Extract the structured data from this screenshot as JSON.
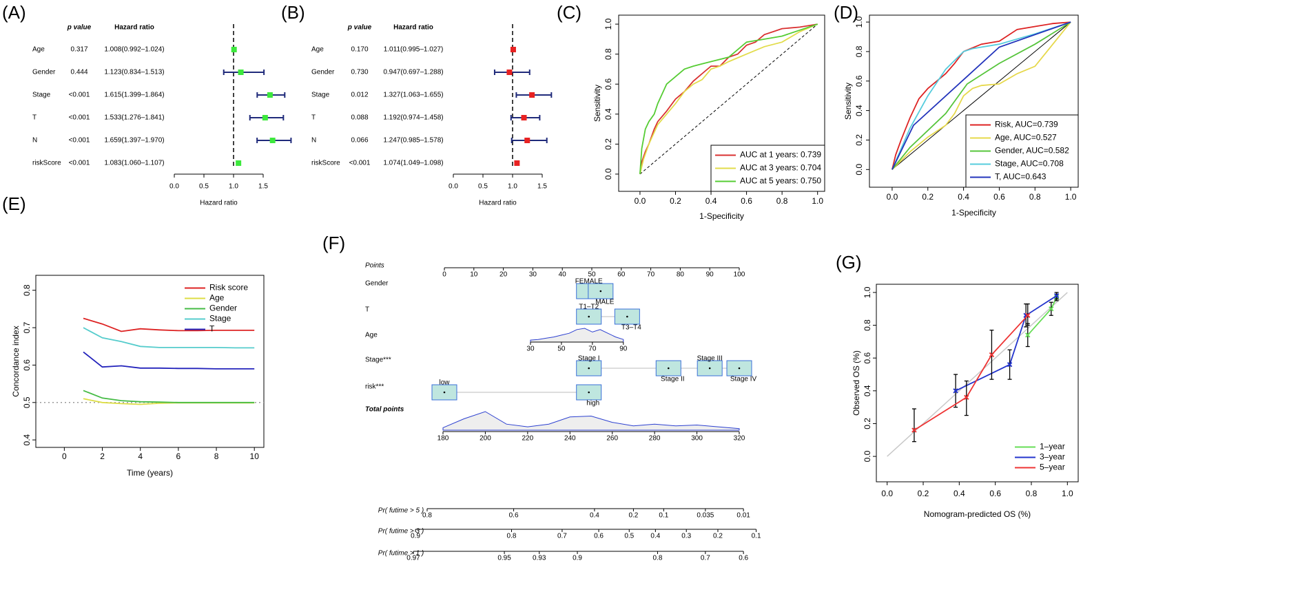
{
  "chart_data": [
    {
      "type": "forest",
      "panel": "(A)",
      "headers": [
        "p value",
        "Hazard ratio"
      ],
      "rows": [
        {
          "name": "Age",
          "p": "0.317",
          "hr_label": "1.008(0.992–1.024)",
          "hr": 1.008,
          "lo": 0.992,
          "hi": 1.024
        },
        {
          "name": "Gender",
          "p": "0.444",
          "hr_label": "1.123(0.834–1.513)",
          "hr": 1.123,
          "lo": 0.834,
          "hi": 1.513
        },
        {
          "name": "Stage",
          "p": "<0.001",
          "hr_label": "1.615(1.399–1.864)",
          "hr": 1.615,
          "lo": 1.399,
          "hi": 1.864
        },
        {
          "name": "T",
          "p": "<0.001",
          "hr_label": "1.533(1.276–1.841)",
          "hr": 1.533,
          "lo": 1.276,
          "hi": 1.841
        },
        {
          "name": "N",
          "p": "<0.001",
          "hr_label": "1.659(1.397–1.970)",
          "hr": 1.659,
          "lo": 1.397,
          "hi": 1.97
        },
        {
          "name": "riskScore",
          "p": "<0.001",
          "hr_label": "1.083(1.060–1.107)",
          "hr": 1.083,
          "lo": 1.06,
          "hi": 1.107
        }
      ],
      "xlim": [
        0,
        2
      ],
      "xticks": [
        {
          "value": 0,
          "label": "0.0"
        },
        0.5,
        {
          "value": 1,
          "label": "1.0"
        },
        1.5
      ],
      "xlabel": "Hazard ratio",
      "reference_line": 1,
      "color": "#3de83d",
      "whisker_color": "#1f2a7a"
    },
    {
      "type": "forest",
      "panel": "(B)",
      "headers": [
        "p value",
        "Hazard ratio"
      ],
      "rows": [
        {
          "name": "Age",
          "p": "0.170",
          "hr_label": "1.011(0.995–1.027)",
          "hr": 1.011,
          "lo": 0.995,
          "hi": 1.027
        },
        {
          "name": "Gender",
          "p": "0.730",
          "hr_label": "0.947(0.697–1.288)",
          "hr": 0.947,
          "lo": 0.697,
          "hi": 1.288
        },
        {
          "name": "Stage",
          "p": "0.012",
          "hr_label": "1.327(1.063–1.655)",
          "hr": 1.327,
          "lo": 1.063,
          "hi": 1.655
        },
        {
          "name": "T",
          "p": "0.088",
          "hr_label": "1.192(0.974–1.458)",
          "hr": 1.192,
          "lo": 0.974,
          "hi": 1.458
        },
        {
          "name": "N",
          "p": "0.066",
          "hr_label": "1.247(0.985–1.578)",
          "hr": 1.247,
          "lo": 0.985,
          "hi": 1.578
        },
        {
          "name": "riskScore",
          "p": "<0.001",
          "hr_label": "1.074(1.049–1.098)",
          "hr": 1.074,
          "lo": 1.049,
          "hi": 1.098
        }
      ],
      "xlim": [
        0,
        2
      ],
      "xticks": [
        {
          "value": 0,
          "label": "0.0"
        },
        0.5,
        {
          "value": 1,
          "label": "1.0"
        },
        1.5
      ],
      "xlabel": "Hazard ratio",
      "reference_line": 1,
      "color": "#e82222",
      "whisker_color": "#1f2a7a"
    },
    {
      "type": "line",
      "panel": "(C)",
      "xlabel": "1-Specificity",
      "ylabel": "Sensitivity",
      "xlim": [
        -0.12,
        1.04
      ],
      "ylim": [
        -0.115,
        1.06
      ],
      "xticks": [
        {
          "value": 0,
          "label": "0.0"
        },
        0.2,
        0.4,
        0.6,
        0.8,
        {
          "value": 1,
          "label": "1.0"
        }
      ],
      "yticks": [
        {
          "value": 0,
          "label": "0.0"
        },
        0.2,
        0.4,
        0.6,
        0.8,
        {
          "value": 1,
          "label": "1.0"
        }
      ],
      "diagonal": "dashed",
      "legend": "bottom-right",
      "legend_box": true,
      "series": [
        {
          "name": "AUC at 1 years: 0.739",
          "color": "#d93030",
          "x": [
            0,
            0.01,
            0.03,
            0.05,
            0.08,
            0.1,
            0.15,
            0.2,
            0.25,
            0.3,
            0.35,
            0.4,
            0.45,
            0.5,
            0.55,
            0.6,
            0.65,
            0.7,
            0.75,
            0.8,
            0.9,
            1
          ],
          "values": [
            0,
            0.08,
            0.15,
            0.2,
            0.3,
            0.35,
            0.42,
            0.5,
            0.55,
            0.62,
            0.67,
            0.72,
            0.72,
            0.78,
            0.8,
            0.86,
            0.88,
            0.93,
            0.95,
            0.97,
            0.98,
            1
          ]
        },
        {
          "name": "AUC at 3 years: 0.704",
          "color": "#e2dc4a",
          "x": [
            0,
            0.02,
            0.05,
            0.1,
            0.15,
            0.2,
            0.25,
            0.3,
            0.35,
            0.4,
            0.45,
            0.5,
            0.6,
            0.7,
            0.8,
            0.9,
            1
          ],
          "values": [
            0,
            0.1,
            0.2,
            0.33,
            0.4,
            0.47,
            0.55,
            0.6,
            0.63,
            0.7,
            0.72,
            0.75,
            0.8,
            0.85,
            0.88,
            0.95,
            1
          ]
        },
        {
          "name": "AUC at 5 years: 0.750",
          "color": "#55cc33",
          "x": [
            0,
            0.01,
            0.03,
            0.05,
            0.08,
            0.1,
            0.15,
            0.2,
            0.25,
            0.3,
            0.4,
            0.5,
            0.6,
            0.7,
            0.8,
            0.9,
            1
          ],
          "values": [
            0,
            0.17,
            0.3,
            0.35,
            0.4,
            0.47,
            0.6,
            0.65,
            0.7,
            0.72,
            0.75,
            0.78,
            0.88,
            0.9,
            0.92,
            0.96,
            1
          ]
        }
      ]
    },
    {
      "type": "line",
      "panel": "(D)",
      "xlabel": "1-Specificity",
      "ylabel": "Sensitivity",
      "xlim": [
        -0.127,
        1.042
      ],
      "ylim": [
        -0.12,
        1.047
      ],
      "xticks": [
        {
          "value": 0,
          "label": "0.0"
        },
        0.2,
        0.4,
        0.6,
        0.8,
        {
          "value": 1,
          "label": "1.0"
        }
      ],
      "yticks": [
        {
          "value": 0,
          "label": "0.0"
        },
        0.2,
        0.4,
        0.6,
        0.8,
        {
          "value": 1,
          "label": "1.0"
        }
      ],
      "diagonal": "solid",
      "legend": "bottom-right",
      "legend_box": true,
      "series": [
        {
          "name": "Risk, AUC=0.739",
          "color": "#dd2222",
          "x": [
            0,
            0.02,
            0.05,
            0.1,
            0.15,
            0.2,
            0.25,
            0.3,
            0.35,
            0.4,
            0.5,
            0.6,
            0.7,
            0.8,
            0.9,
            1
          ],
          "values": [
            0,
            0.1,
            0.2,
            0.35,
            0.48,
            0.55,
            0.6,
            0.65,
            0.72,
            0.8,
            0.85,
            0.87,
            0.95,
            0.97,
            0.99,
            1
          ]
        },
        {
          "name": "Age, AUC=0.527",
          "color": "#e6d84a",
          "x": [
            0,
            0.1,
            0.2,
            0.3,
            0.35,
            0.4,
            0.45,
            0.5,
            0.6,
            0.7,
            0.8,
            0.9,
            1
          ],
          "values": [
            0,
            0.12,
            0.22,
            0.3,
            0.38,
            0.5,
            0.55,
            0.57,
            0.58,
            0.65,
            0.7,
            0.85,
            1
          ]
        },
        {
          "name": "Gender, AUC=0.582",
          "color": "#55c43a",
          "x": [
            0,
            0.1,
            0.3,
            0.42,
            0.6,
            0.8,
            1
          ],
          "values": [
            0,
            0.15,
            0.38,
            0.58,
            0.72,
            0.85,
            1
          ]
        },
        {
          "name": "Stage, AUC=0.708",
          "color": "#55ccdd",
          "x": [
            0,
            0.1,
            0.2,
            0.3,
            0.4,
            0.45,
            0.6,
            0.8,
            1
          ],
          "values": [
            0,
            0.28,
            0.5,
            0.68,
            0.8,
            0.82,
            0.85,
            0.92,
            1
          ]
        },
        {
          "name": "T, AUC=0.643",
          "color": "#2233bb",
          "x": [
            0,
            0.12,
            0.6,
            1
          ],
          "values": [
            0,
            0.3,
            0.83,
            1
          ]
        }
      ]
    },
    {
      "type": "line",
      "panel": "(E)",
      "xlabel": "Time (years)",
      "ylabel": "Concordance index",
      "xlim": [
        -1.5,
        10.5
      ],
      "ylim": [
        0.38,
        0.84
      ],
      "xticks": [
        0,
        2,
        4,
        6,
        8,
        10
      ],
      "yticks": [
        0.4,
        0.5,
        0.6,
        0.7,
        0.8
      ],
      "reference_line": 0.5,
      "legend": "top-right",
      "legend_box": false,
      "x": [
        1,
        2,
        3,
        4,
        5,
        6,
        7,
        8,
        9,
        10
      ],
      "series": [
        {
          "name": "Risk score",
          "color": "#dd2222",
          "values": [
            0.725,
            0.71,
            0.69,
            0.697,
            0.694,
            0.692,
            0.692,
            0.693,
            0.693,
            0.693
          ]
        },
        {
          "name": "Age",
          "color": "#dddd44",
          "values": [
            0.51,
            0.5,
            0.497,
            0.495,
            0.498,
            0.499,
            0.499,
            0.499,
            0.499,
            0.499
          ]
        },
        {
          "name": "Gender",
          "color": "#44bb44",
          "values": [
            0.532,
            0.512,
            0.505,
            0.502,
            0.501,
            0.5,
            0.5,
            0.5,
            0.5,
            0.5
          ]
        },
        {
          "name": "Stage",
          "color": "#55cccc",
          "values": [
            0.7,
            0.673,
            0.663,
            0.65,
            0.647,
            0.647,
            0.647,
            0.647,
            0.646,
            0.646
          ]
        },
        {
          "name": "T",
          "color": "#2222bb",
          "values": [
            0.635,
            0.595,
            0.598,
            0.592,
            0.592,
            0.591,
            0.591,
            0.59,
            0.59,
            0.59
          ]
        }
      ]
    },
    {
      "type": "nomogram",
      "panel": "(F)",
      "points_axis": {
        "label": "Points",
        "ticks": [
          0,
          10,
          20,
          30,
          40,
          50,
          60,
          70,
          80,
          90,
          100
        ]
      },
      "variables": [
        {
          "label": "Gender",
          "levels": [
            {
              "label": "FEMALE",
              "points": 49
            },
            {
              "label": "MALE",
              "points": 53
            }
          ]
        },
        {
          "label": "T",
          "levels": [
            {
              "label": "T1–T2",
              "points": 49
            },
            {
              "label": "T3–T4",
              "points": 62
            }
          ]
        },
        {
          "label": "Age",
          "range": [
            30,
            90
          ],
          "points": [
            29.2,
            60.7
          ],
          "ticks": [
            30,
            50,
            70,
            90
          ],
          "density": [
            0.05,
            0.1,
            0.2,
            0.3,
            0.45,
            0.6,
            0.9,
            1,
            0.7,
            0.9,
            0.6,
            0.3,
            0.1
          ]
        },
        {
          "label": "Stage***",
          "levels": [
            {
              "label": "Stage I",
              "points": 49
            },
            {
              "label": "Stage II",
              "points": 76
            },
            {
              "label": "Stage III",
              "points": 90
            },
            {
              "label": "Stage IV",
              "points": 100
            }
          ]
        },
        {
          "label": "risk***",
          "levels": [
            {
              "label": "low",
              "points": 0
            },
            {
              "label": "high",
              "points": 49
            }
          ]
        }
      ],
      "total_points": {
        "label": "Total points",
        "ticks": [
          180,
          200,
          220,
          240,
          260,
          280,
          300,
          320
        ],
        "density": [
          0.1,
          0.6,
          1.0,
          0.3,
          0.15,
          0.3,
          0.7,
          0.75,
          0.4,
          0.2,
          0.3,
          0.2,
          0.25,
          0.15,
          0.05
        ]
      },
      "probabilities": [
        {
          "label": "Pr( futime > 5 )",
          "ticks": [
            {
              "label": "0.8",
              "points": 172.5
            },
            {
              "label": "0.6",
              "points": 213.4
            },
            {
              "label": "0.4",
              "points": 251.6
            },
            {
              "label": "0.2",
              "points": 270
            },
            {
              "label": "0.1",
              "points": 284.3
            },
            {
              "label": "0.035",
              "points": 304
            },
            {
              "label": "0.01",
              "points": 322
            }
          ]
        },
        {
          "label": "Pr( futime > 3 )",
          "ticks": [
            {
              "label": "0.9",
              "points": 167
            },
            {
              "label": "0.8",
              "points": 212.4
            },
            {
              "label": "0.7",
              "points": 236.3
            },
            {
              "label": "0.6",
              "points": 253.6
            },
            {
              "label": "0.5",
              "points": 268
            },
            {
              "label": "0.4",
              "points": 280.4
            },
            {
              "label": "0.3",
              "points": 295
            },
            {
              "label": "0.2",
              "points": 309.9
            },
            {
              "label": "0.1",
              "points": 328
            }
          ]
        },
        {
          "label": "Pr( futime > 1 )",
          "ticks": [
            {
              "label": "0.97",
              "points": 166
            },
            {
              "label": "0.95",
              "points": 209
            },
            {
              "label": "0.93",
              "points": 225.5
            },
            {
              "label": "0.9",
              "points": 243.5
            },
            {
              "label": "0.8",
              "points": 281.4
            },
            {
              "label": "0.7",
              "points": 304
            },
            {
              "label": "0.6",
              "points": 322
            }
          ]
        }
      ],
      "box_color": "#bfe6df",
      "box_border": "#3a6fd8",
      "density_color": "#2b3fd0"
    },
    {
      "type": "calibration",
      "panel": "(G)",
      "xlabel": "Nomogram-predicted OS (%)",
      "ylabel": "Observed OS (%)",
      "xlim": [
        -0.06,
        1.06
      ],
      "ylim": [
        -0.155,
        1.05
      ],
      "xticks": [
        {
          "value": 0,
          "label": "0.0"
        },
        0.2,
        0.4,
        0.6,
        0.8,
        {
          "value": 1,
          "label": "1.0"
        }
      ],
      "yticks": [
        {
          "value": 0,
          "label": "0.0"
        },
        0.2,
        0.4,
        0.6,
        0.8,
        {
          "value": 1,
          "label": "1.0"
        }
      ],
      "legend": "bottom-right",
      "legend_box": false,
      "series": [
        {
          "name": "1–year",
          "color": "#66dd55",
          "x": [
            0.78,
            0.91,
            0.94
          ],
          "values": [
            0.74,
            0.9,
            0.97
          ],
          "lo": [
            0.67,
            0.86,
            0.95
          ],
          "hi": [
            0.81,
            0.94,
            0.99
          ]
        },
        {
          "name": "3–year",
          "color": "#2233cc",
          "x": [
            0.38,
            0.68,
            0.77,
            0.94
          ],
          "values": [
            0.4,
            0.56,
            0.86,
            0.98
          ],
          "lo": [
            0.3,
            0.47,
            0.79,
            0.96
          ],
          "hi": [
            0.5,
            0.65,
            0.93,
            1.0
          ]
        },
        {
          "name": "5–year",
          "color": "#ee3333",
          "x": [
            0.15,
            0.44,
            0.58,
            0.78
          ],
          "values": [
            0.16,
            0.36,
            0.62,
            0.86
          ],
          "lo": [
            0.09,
            0.25,
            0.47,
            0.8
          ],
          "hi": [
            0.29,
            0.46,
            0.77,
            0.93
          ]
        }
      ]
    }
  ]
}
